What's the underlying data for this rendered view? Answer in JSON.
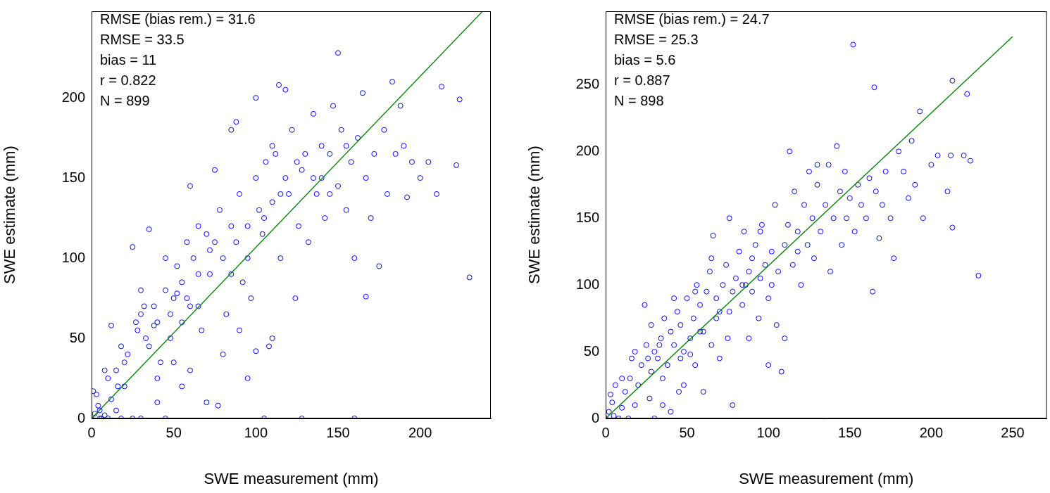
{
  "chart_data": [
    {
      "type": "scatter",
      "x_label": "SWE measurement (mm)",
      "y_label": "SWE estimate (mm)",
      "annotations": [
        "RMSE (bias rem.) = 31.6",
        "RMSE = 33.5",
        "bias = 11",
        "r = 0.822",
        "N = 899"
      ],
      "color": "#0000ff",
      "marker": "circle",
      "grid": false,
      "xlim": [
        0,
        243
      ],
      "ylim": [
        0,
        254
      ],
      "xticks": [
        0,
        50,
        100,
        150,
        200
      ],
      "yticks": [
        0,
        50,
        100,
        150,
        200
      ],
      "reference_line": {
        "x": [
          0,
          238
        ],
        "y": [
          0,
          254
        ],
        "color": "#008000"
      },
      "x": [
        0,
        2,
        3,
        5,
        1,
        4,
        8,
        10,
        12,
        6,
        15,
        18,
        20,
        22,
        25,
        28,
        30,
        33,
        35,
        38,
        40,
        42,
        45,
        48,
        50,
        52,
        55,
        58,
        60,
        62,
        65,
        67,
        70,
        72,
        75,
        78,
        80,
        82,
        85,
        88,
        90,
        92,
        95,
        97,
        100,
        102,
        104,
        106,
        108,
        110,
        112,
        115,
        118,
        120,
        122,
        124,
        126,
        128,
        130,
        132,
        135,
        137,
        140,
        142,
        145,
        147,
        150,
        152,
        155,
        158,
        160,
        162,
        165,
        167,
        170,
        172,
        175,
        178,
        180,
        183,
        185,
        188,
        190,
        192,
        195,
        200,
        205,
        210,
        213,
        222,
        224,
        230,
        167,
        128,
        160,
        150,
        114,
        118,
        30,
        40,
        45,
        55,
        60,
        70,
        77,
        80,
        90,
        95,
        100,
        110,
        105,
        35,
        25,
        45,
        60,
        75,
        85,
        88,
        100,
        65,
        50,
        40,
        20,
        15,
        10,
        18,
        27,
        32,
        55,
        58,
        65,
        72,
        85,
        95,
        105,
        125,
        135,
        145,
        155,
        140,
        115,
        110,
        48,
        52,
        38,
        30,
        12,
        8,
        5,
        16
      ],
      "values": [
        0,
        3,
        15,
        5,
        17,
        8,
        2,
        0,
        12,
        0,
        5,
        0,
        20,
        40,
        0,
        55,
        65,
        50,
        45,
        70,
        60,
        35,
        80,
        50,
        75,
        95,
        85,
        110,
        70,
        100,
        120,
        55,
        115,
        90,
        110,
        130,
        100,
        65,
        120,
        110,
        140,
        85,
        100,
        75,
        150,
        130,
        115,
        160,
        45,
        135,
        165,
        100,
        150,
        140,
        180,
        75,
        120,
        155,
        165,
        110,
        190,
        140,
        170,
        125,
        165,
        195,
        145,
        180,
        130,
        160,
        100,
        175,
        203,
        150,
        125,
        165,
        95,
        180,
        140,
        210,
        165,
        195,
        170,
        138,
        160,
        150,
        160,
        140,
        207,
        158,
        199,
        88,
        76,
        0,
        0,
        228,
        208,
        205,
        0,
        10,
        0,
        20,
        30,
        10,
        8,
        40,
        55,
        25,
        42,
        50,
        0,
        118,
        107,
        100,
        145,
        155,
        180,
        185,
        200,
        90,
        35,
        25,
        35,
        30,
        25,
        45,
        60,
        70,
        60,
        75,
        70,
        105,
        90,
        120,
        125,
        160,
        150,
        140,
        170,
        150,
        140,
        170,
        65,
        78,
        58,
        80,
        58,
        30,
        0,
        20
      ]
    },
    {
      "type": "scatter",
      "x_label": "SWE measurement (mm)",
      "y_label": "SWE estimate (mm)",
      "annotations": [
        "RMSE (bias rem.) = 24.7",
        "RMSE = 25.3",
        "bias = 5.6",
        "r = 0.887",
        "N = 898"
      ],
      "color": "#0000ff",
      "marker": "circle",
      "grid": false,
      "xlim": [
        0,
        271
      ],
      "ylim": [
        0,
        305
      ],
      "xticks": [
        0,
        50,
        100,
        150,
        200,
        250
      ],
      "yticks": [
        0,
        50,
        100,
        150,
        200,
        250
      ],
      "reference_line": {
        "x": [
          0,
          250
        ],
        "y": [
          0,
          286
        ],
        "color": "#008000"
      },
      "x": [
        0,
        2,
        3,
        5,
        4,
        8,
        10,
        12,
        14,
        15,
        18,
        20,
        22,
        24,
        25,
        27,
        28,
        30,
        32,
        34,
        35,
        36,
        38,
        40,
        42,
        44,
        45,
        46,
        48,
        50,
        52,
        54,
        55,
        56,
        58,
        60,
        62,
        64,
        65,
        66,
        68,
        70,
        72,
        74,
        75,
        76,
        78,
        78,
        80,
        82,
        84,
        85,
        86,
        88,
        90,
        92,
        94,
        95,
        96,
        98,
        100,
        102,
        104,
        105,
        106,
        108,
        110,
        112,
        113,
        115,
        116,
        118,
        120,
        122,
        124,
        125,
        127,
        128,
        130,
        132,
        135,
        137,
        138,
        140,
        142,
        144,
        145,
        147,
        148,
        150,
        152,
        153,
        155,
        157,
        160,
        162,
        164,
        165,
        166,
        168,
        170,
        172,
        175,
        177,
        180,
        183,
        186,
        188,
        190,
        193,
        195,
        200,
        204,
        210,
        212,
        213,
        213,
        220,
        222,
        224,
        229,
        18,
        30,
        35,
        40,
        48,
        60,
        70,
        88,
        100,
        110,
        42,
        55,
        65,
        95,
        130,
        28,
        10,
        6,
        16,
        26,
        33,
        46,
        52,
        58,
        68,
        76,
        84,
        90,
        102,
        118
      ],
      "values": [
        0,
        5,
        18,
        2,
        12,
        0,
        8,
        20,
        0,
        30,
        10,
        25,
        40,
        85,
        55,
        15,
        35,
        50,
        45,
        60,
        30,
        75,
        40,
        65,
        55,
        80,
        20,
        70,
        50,
        90,
        60,
        75,
        40,
        100,
        85,
        65,
        95,
        110,
        55,
        137,
        90,
        80,
        100,
        115,
        60,
        150,
        95,
        10,
        105,
        125,
        85,
        140,
        100,
        110,
        95,
        130,
        75,
        105,
        145,
        115,
        90,
        125,
        160,
        70,
        110,
        35,
        130,
        145,
        200,
        115,
        170,
        140,
        100,
        160,
        130,
        185,
        150,
        120,
        175,
        140,
        160,
        190,
        110,
        150,
        204,
        170,
        130,
        185,
        150,
        165,
        280,
        140,
        175,
        160,
        150,
        180,
        95,
        248,
        170,
        135,
        160,
        185,
        150,
        120,
        200,
        185,
        165,
        208,
        175,
        230,
        150,
        190,
        197,
        170,
        197,
        253,
        143,
        197,
        243,
        193,
        107,
        50,
        0,
        10,
        5,
        25,
        20,
        45,
        60,
        40,
        60,
        90,
        95,
        120,
        140,
        190,
        70,
        30,
        25,
        45,
        45,
        55,
        45,
        48,
        65,
        75,
        80,
        100,
        120,
        100,
        125
      ]
    }
  ]
}
